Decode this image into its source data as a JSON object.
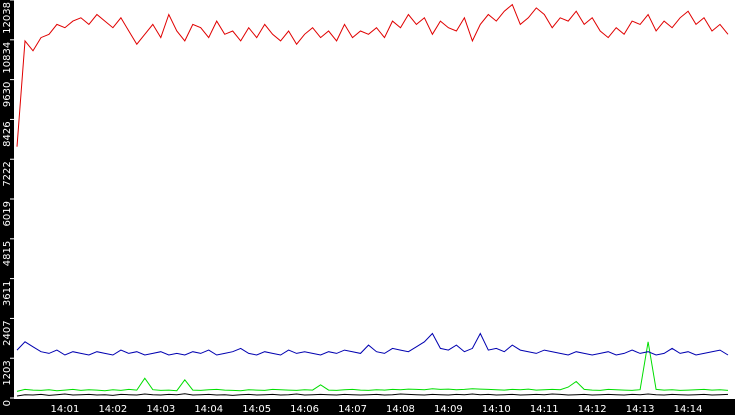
{
  "chart_data": {
    "type": "line",
    "categories": [
      null,
      null,
      null,
      null,
      null,
      null,
      "14:01",
      null,
      null,
      null,
      null,
      null,
      "14:02",
      null,
      null,
      null,
      null,
      null,
      "14:03",
      null,
      null,
      null,
      null,
      null,
      "14:04",
      null,
      null,
      null,
      null,
      null,
      "14:05",
      null,
      null,
      null,
      null,
      null,
      "14:06",
      null,
      null,
      null,
      null,
      null,
      "14:07",
      null,
      null,
      null,
      null,
      null,
      "14:08",
      null,
      null,
      null,
      null,
      null,
      "14:09",
      null,
      null,
      null,
      null,
      null,
      "14:10",
      null,
      null,
      null,
      null,
      null,
      "14:11",
      null,
      null,
      null,
      null,
      null,
      "14:12",
      null,
      null,
      null,
      null,
      null,
      "14:13",
      null,
      null,
      null,
      null,
      null,
      "14:14",
      null,
      null,
      null,
      null,
      null
    ],
    "series": [
      {
        "color": "#e00000",
        "values": [
          7600,
          10800,
          10500,
          10900,
          11000,
          11300,
          11200,
          11400,
          11500,
          11300,
          11600,
          11400,
          11200,
          11500,
          11100,
          10700,
          11000,
          11300,
          10900,
          11600,
          11100,
          10800,
          11300,
          11200,
          10900,
          11400,
          11000,
          11100,
          10800,
          11200,
          10900,
          11300,
          11000,
          10800,
          11100,
          10700,
          11000,
          11200,
          10900,
          11100,
          10800,
          11300,
          10900,
          11100,
          11000,
          11200,
          10900,
          11400,
          11200,
          11600,
          11300,
          11500,
          11000,
          11400,
          11200,
          11100,
          11500,
          10800,
          11300,
          11600,
          11400,
          11700,
          11900,
          11300,
          11500,
          11800,
          11600,
          11200,
          11500,
          11400,
          11700,
          11300,
          11500,
          11100,
          10900,
          11200,
          11000,
          11400,
          11300,
          11600,
          11100,
          11400,
          11200,
          11500,
          11700,
          11300,
          11500,
          11100,
          11300,
          11000
        ]
      },
      {
        "color": "#0000b0",
        "values": [
          1450,
          1700,
          1550,
          1400,
          1350,
          1450,
          1300,
          1400,
          1350,
          1300,
          1400,
          1350,
          1300,
          1450,
          1350,
          1400,
          1300,
          1350,
          1400,
          1300,
          1350,
          1300,
          1400,
          1350,
          1450,
          1300,
          1350,
          1400,
          1500,
          1350,
          1300,
          1400,
          1350,
          1300,
          1450,
          1350,
          1400,
          1350,
          1300,
          1400,
          1350,
          1450,
          1400,
          1350,
          1600,
          1400,
          1350,
          1500,
          1450,
          1400,
          1550,
          1700,
          1950,
          1500,
          1450,
          1600,
          1400,
          1500,
          1950,
          1450,
          1500,
          1400,
          1600,
          1450,
          1400,
          1350,
          1450,
          1400,
          1350,
          1300,
          1400,
          1350,
          1300,
          1350,
          1400,
          1300,
          1350,
          1450,
          1350,
          1400,
          1300,
          1350,
          1500,
          1350,
          1400,
          1300,
          1350,
          1400,
          1450,
          1300
        ]
      },
      {
        "color": "#00dd00",
        "values": [
          200,
          260,
          240,
          230,
          250,
          220,
          240,
          260,
          230,
          250,
          240,
          220,
          250,
          230,
          260,
          240,
          600,
          250,
          230,
          240,
          220,
          550,
          240,
          230,
          250,
          260,
          240,
          230,
          220,
          250,
          240,
          230,
          260,
          250,
          240,
          230,
          250,
          240,
          400,
          240,
          230,
          250,
          260,
          240,
          230,
          250,
          240,
          260,
          250,
          270,
          260,
          250,
          280,
          260,
          270,
          250,
          260,
          280,
          270,
          260,
          250,
          240,
          260,
          250,
          270,
          240,
          250,
          260,
          250,
          330,
          500,
          260,
          240,
          230,
          260,
          250,
          240,
          230,
          250,
          1700,
          260,
          240,
          250,
          230,
          240,
          250,
          260,
          240,
          250,
          230
        ]
      },
      {
        "color": "#000000",
        "values": [
          60,
          100,
          90,
          110,
          80,
          100,
          120,
          90,
          100,
          110,
          90,
          100,
          80,
          110,
          100,
          90,
          120,
          100,
          90,
          110,
          100,
          130,
          90,
          100,
          110,
          90,
          100,
          80,
          100,
          110,
          90,
          100,
          110,
          90,
          100,
          120,
          90,
          100,
          110,
          100,
          90,
          110,
          100,
          90,
          100,
          110,
          90,
          100,
          120,
          110,
          100,
          90,
          110,
          100,
          90,
          110,
          100,
          120,
          100,
          110,
          90,
          100,
          110,
          90,
          100,
          110,
          100,
          120,
          110,
          90,
          100,
          110,
          90,
          100,
          110,
          100,
          90,
          110,
          100,
          120,
          100,
          90,
          110,
          100,
          90,
          100,
          110,
          90,
          100,
          110
        ]
      }
    ],
    "ylim": [
      0,
      12038
    ],
    "yticks": [
      0,
      1203,
      2407,
      3611,
      4815,
      6019,
      7222,
      8426,
      9630,
      10834,
      12038
    ]
  }
}
